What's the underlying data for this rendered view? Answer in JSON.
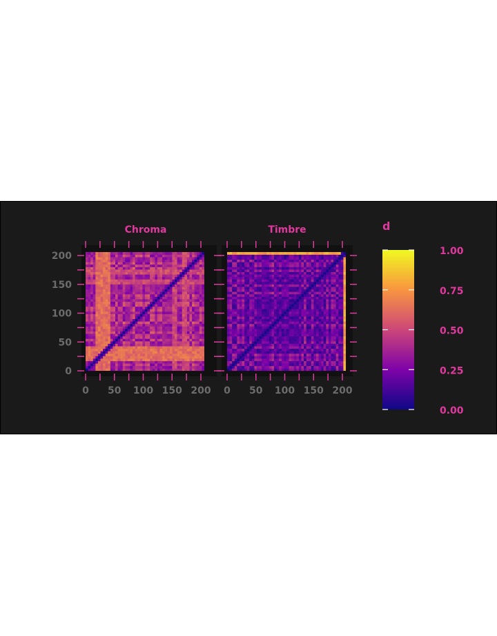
{
  "chart_data": {
    "type": "heatmap",
    "background": "#1a1a1a",
    "accent_color": "#e0399e",
    "tick_label_color": "#6c6c6c",
    "colormap": "plasma",
    "legend": {
      "title": "d",
      "placement": "right",
      "range": [
        0,
        1
      ],
      "tick_labels": [
        "1.00",
        "0.75",
        "0.50",
        "0.25",
        "0.00"
      ],
      "tick_values": [
        1.0,
        0.75,
        0.5,
        0.25,
        0.0
      ]
    },
    "panels": [
      {
        "title": "Chroma",
        "xlim": [
          0,
          206
        ],
        "ylim": [
          0,
          206
        ],
        "x_tick_labels": [
          "0",
          "50",
          "100",
          "150",
          "200"
        ],
        "x_tick_values": [
          0,
          50,
          100,
          150,
          200
        ],
        "y_tick_labels": [
          "0",
          "50",
          "100",
          "150",
          "200"
        ],
        "y_tick_values": [
          0,
          50,
          100,
          150,
          200
        ],
        "base_value": 0.36,
        "bands": [
          {
            "from": 18,
            "to": 44,
            "value": 0.62
          },
          {
            "from": 150,
            "to": 160,
            "value": 0.5
          },
          {
            "from": 168,
            "to": 174,
            "value": 0.52
          }
        ]
      },
      {
        "title": "Timbre",
        "xlim": [
          0,
          206
        ],
        "ylim": [
          0,
          206
        ],
        "x_tick_labels": [
          "0",
          "50",
          "100",
          "150",
          "200"
        ],
        "x_tick_values": [
          0,
          50,
          100,
          150,
          200
        ],
        "y_tick_labels": [],
        "y_tick_values": [
          0,
          50,
          100,
          150,
          200
        ],
        "base_value": 0.2,
        "bands": [
          {
            "from": 202,
            "to": 206,
            "value": 0.78
          },
          {
            "from": 110,
            "to": 112,
            "value": 0.3
          }
        ]
      }
    ]
  }
}
